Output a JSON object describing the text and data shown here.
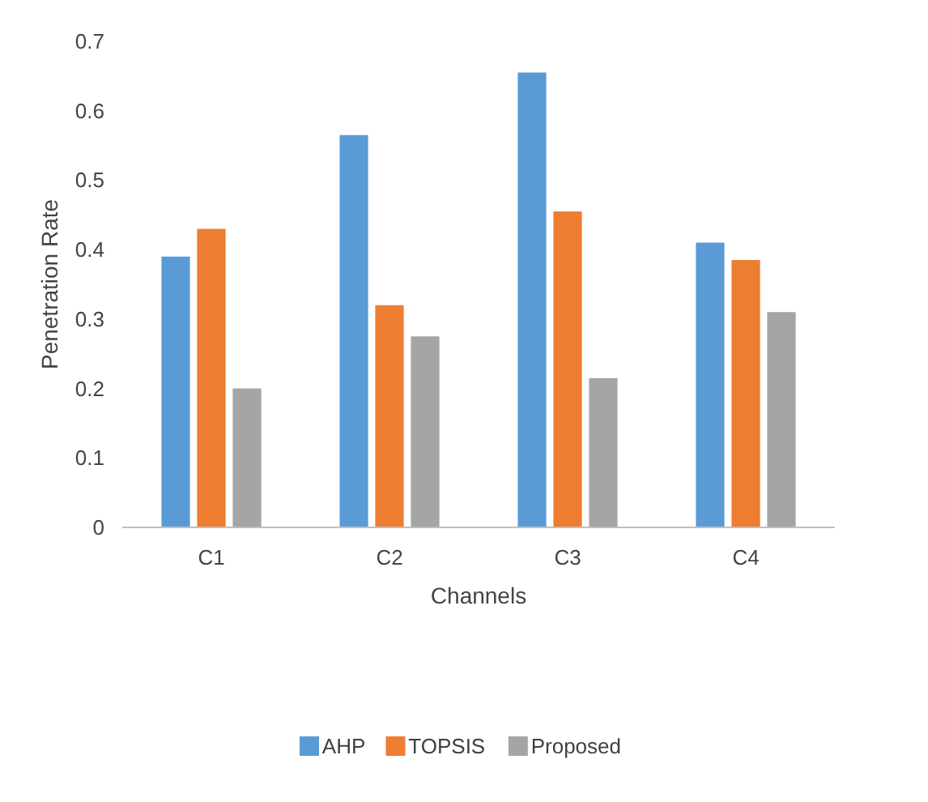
{
  "chart_data": {
    "type": "bar",
    "xlabel": "Channels",
    "ylabel": "Penetration Rate",
    "categories": [
      "C1",
      "C2",
      "C3",
      "C4"
    ],
    "series": [
      {
        "name": "AHP",
        "color": "#5b9bd5",
        "values": [
          0.39,
          0.565,
          0.655,
          0.41
        ]
      },
      {
        "name": "TOPSIS",
        "color": "#ed7d31",
        "values": [
          0.43,
          0.32,
          0.455,
          0.385
        ]
      },
      {
        "name": "Proposed",
        "color": "#a5a5a5",
        "values": [
          0.2,
          0.275,
          0.215,
          0.31
        ]
      }
    ],
    "ylim": [
      0,
      0.7
    ],
    "yticks": [
      0,
      0.1,
      0.2,
      0.3,
      0.4,
      0.5,
      0.6,
      0.7
    ],
    "grid": false,
    "legend": "bottom"
  }
}
